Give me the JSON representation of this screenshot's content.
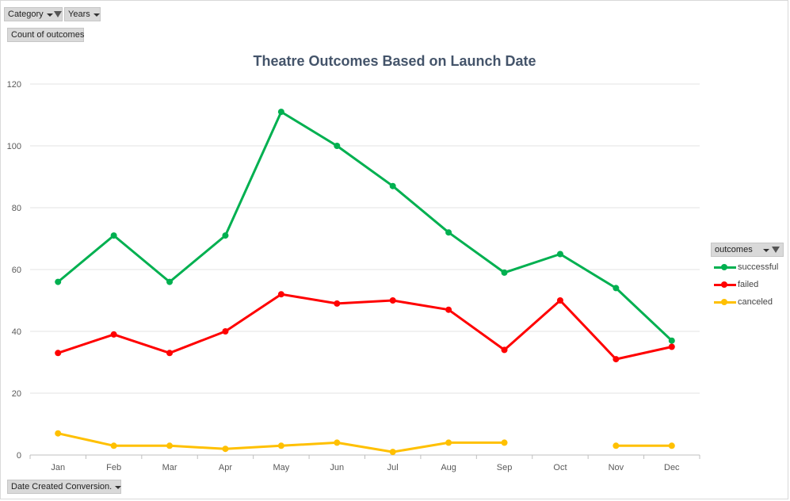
{
  "pivot_buttons": {
    "category": "Category",
    "years": "Years",
    "value_field": "Count of outcomes",
    "axis_field": "Date Created Conversion."
  },
  "legend": {
    "header": "outcomes"
  },
  "chart_data": {
    "type": "line",
    "title": "Theatre Outcomes Based on Launch Date",
    "categories": [
      "Jan",
      "Feb",
      "Mar",
      "Apr",
      "May",
      "Jun",
      "Jul",
      "Aug",
      "Sep",
      "Oct",
      "Nov",
      "Dec"
    ],
    "yticks": [
      "0",
      "20",
      "40",
      "60",
      "80",
      "100",
      "120"
    ],
    "ylim": [
      0,
      120
    ],
    "grid": true,
    "legend_position": "right",
    "series": [
      {
        "name": "successful",
        "color": "#00b050",
        "values": [
          56,
          71,
          56,
          71,
          111,
          100,
          87,
          72,
          59,
          65,
          54,
          37
        ]
      },
      {
        "name": "failed",
        "color": "#ff0000",
        "values": [
          33,
          39,
          33,
          40,
          52,
          49,
          50,
          47,
          34,
          50,
          31,
          35
        ]
      },
      {
        "name": "canceled",
        "color": "#ffc000",
        "values": [
          7,
          3,
          3,
          2,
          3,
          4,
          1,
          4,
          4,
          null,
          3,
          3
        ]
      }
    ]
  }
}
